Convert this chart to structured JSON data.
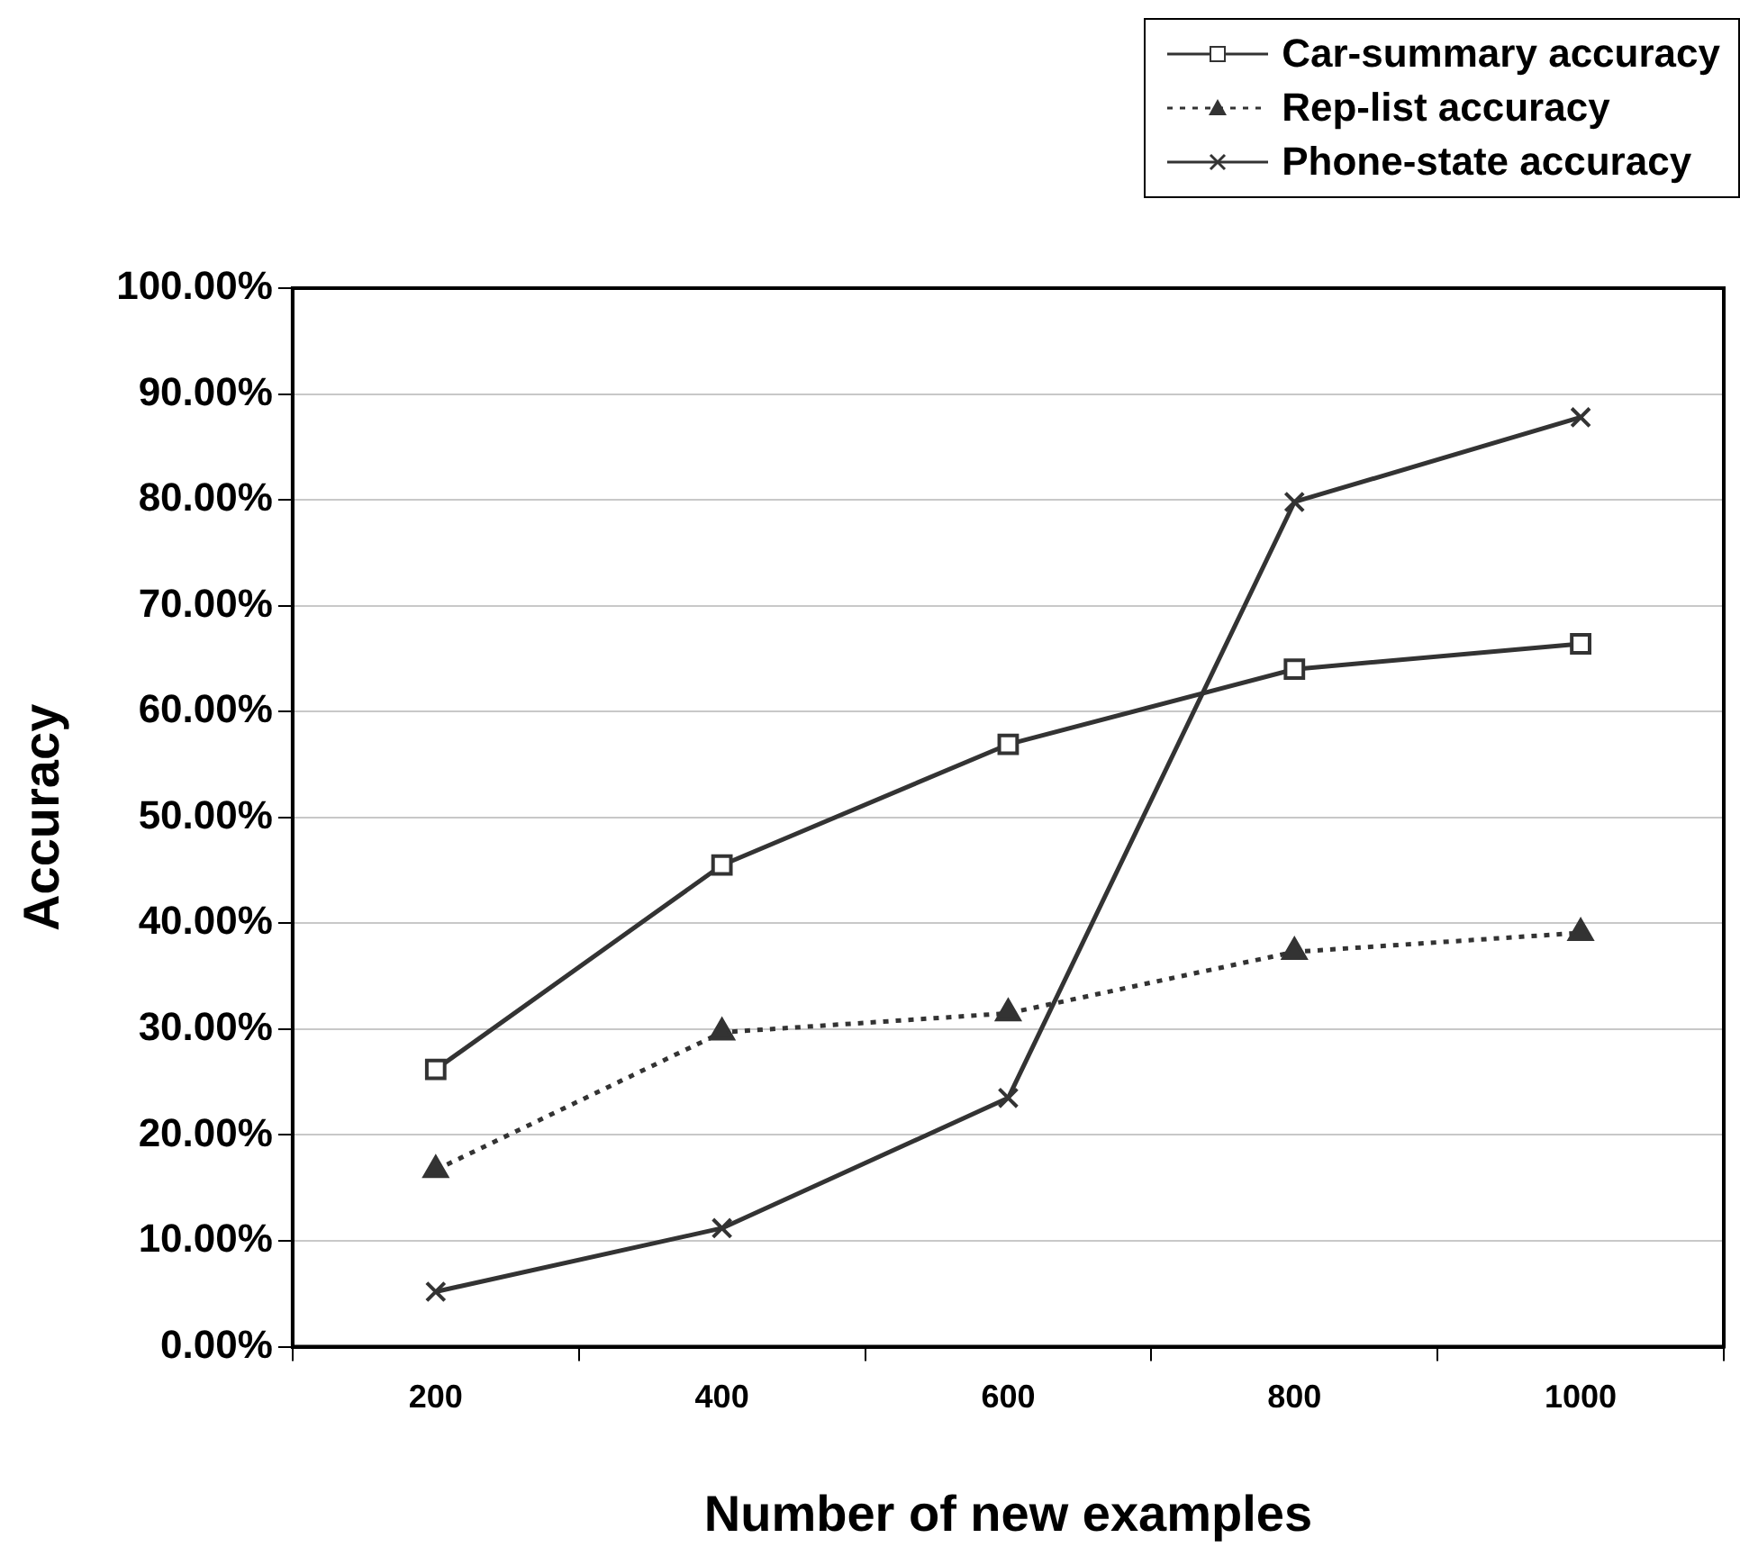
{
  "chart_data": {
    "type": "line",
    "xlabel": "Number of new examples",
    "ylabel": "Accuracy",
    "categories": [
      "200",
      "400",
      "600",
      "800",
      "1000"
    ],
    "series": [
      {
        "name": "Car-summary accuracy",
        "color": "#333333",
        "marker": "square",
        "line_style": "solid",
        "values": [
          26.2,
          45.5,
          56.9,
          64.0,
          66.4
        ]
      },
      {
        "name": "Rep-list accuracy",
        "color": "#333333",
        "marker": "triangle",
        "line_style": "dotted",
        "values": [
          16.7,
          29.7,
          31.5,
          37.3,
          39.1
        ]
      },
      {
        "name": "Phone-state accuracy",
        "color": "#333333",
        "marker": "cross",
        "line_style": "solid",
        "values": [
          5.2,
          11.2,
          23.5,
          79.8,
          87.8
        ]
      }
    ],
    "ylim": [
      0,
      100
    ],
    "yticks": [
      {
        "value": 0,
        "label": "0.00%"
      },
      {
        "value": 10,
        "label": "10.00%"
      },
      {
        "value": 20,
        "label": "20.00%"
      },
      {
        "value": 30,
        "label": "30.00%"
      },
      {
        "value": 40,
        "label": "40.00%"
      },
      {
        "value": 50,
        "label": "50.00%"
      },
      {
        "value": 60,
        "label": "60.00%"
      },
      {
        "value": 70,
        "label": "70.00%"
      },
      {
        "value": 80,
        "label": "80.00%"
      },
      {
        "value": 90,
        "label": "90.00%"
      },
      {
        "value": 100,
        "label": "100.00%"
      }
    ],
    "grid": "y",
    "legend": "top right"
  }
}
